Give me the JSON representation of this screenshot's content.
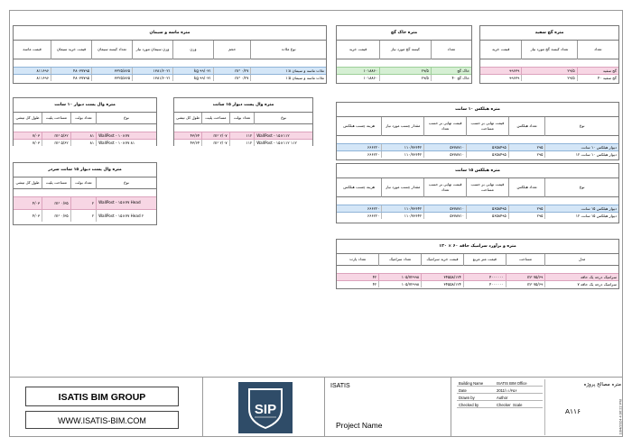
{
  "concrete": {
    "title": "متره ماسه و سیمان",
    "headers": [
      "قیمت ماسه",
      "قیمت خرید سیمان",
      "تعداد کیسه سیمان",
      "وزن سیمان مورد نیاز",
      "وزن",
      "حجم",
      "نوع ملات"
    ],
    "rows": [
      [
        "۸۱۱۶۹۶",
        "۴۸۰۳۷۷۹۵",
        "۳۳۲۵/۸۶۵",
        "۱۳۸۱/۶۰۲۱",
        "kg ۹۹/۰۳۱",
        "۰/۲۷ m³",
        "ملات ماسه و سیمان ۱:۸"
      ],
      [
        "۸۱۱۶۹۶",
        "۴۸۰۳۷۷۹۵",
        "۳۳۲۵/۸۶۵",
        "۱۳۸۱/۶۰۲۱",
        "kg ۹۹/۰۳۱",
        "۰/۲۷ m³",
        "ملات ماسه و سیمان ۱:۵"
      ]
    ]
  },
  "khak_gach": {
    "title": "متره خاک گچ",
    "headers": [
      "قیمت خرید",
      "کیسه گچ مورد نیاز",
      "تعداد"
    ],
    "rows": [
      [
        "۱۰۱۸۸۶۰",
        "۲۹/۵",
        "خاک گچ"
      ],
      [
        "۱۰۱۸۸۶۰",
        "۲۹/۵",
        "خاک گچ ۴۰"
      ]
    ]
  },
  "gach_sefid": {
    "title": "متره گچ سفید",
    "headers": [
      "قیمت خرید",
      "تعداد کیسه گچ مورد نیاز",
      "تعداد"
    ],
    "rows": [
      [
        "۹۹۶۳۹",
        "۲۹/۵",
        "گچ سفید"
      ],
      [
        "۹۹۶۳۹",
        "۲۹/۵",
        "گچ سفید ۴۰"
      ]
    ]
  },
  "wall10": {
    "title": "متره وال پست دیوار ۱۰ سانت",
    "headers": [
      "طول کل تیشی",
      "مساحت پلیت",
      "تعداد بولت",
      "نوع"
    ],
    "rows": [
      [
        "۷/۰۳",
        "۵/۶۲ m²",
        "۸۱",
        "WallPost - ۱۰×۷۷"
      ],
      [
        "۷/۰۳",
        "۵/۶۲ m²",
        "۸۱",
        "WallPost - ۱۰×۷۷ ۸۱"
      ]
    ]
  },
  "wall15": {
    "title": "متره وال پست دیوار ۱۵ سانت",
    "headers": [
      "طول کل تیشی",
      "مساحت پلیت",
      "تعداد بولت",
      "نوع"
    ],
    "rows": [
      [
        "۴۳/۶۴",
        "۲/۰۷ m²",
        "۱۱۲",
        "WallPost - ۱۵×۱۱۲"
      ],
      [
        "۴۳/۶۴",
        "۲/۰۷ m²",
        "۱۱۲",
        "WallPost - ۱۵×۱۱۲ ۱۱۲"
      ]
    ]
  },
  "wall15s": {
    "title": "متره وال پست دیوار ۱۵ سانت سردر",
    "headers": [
      "طول کل تیشی",
      "مساحت پلیت",
      "تعداد بولت",
      "نوع"
    ],
    "rows": [
      [
        "۴/۰۳",
        "۰/۳۵ m²",
        "۲",
        "WallPost - ۱۵×۷۷ Head"
      ],
      [
        "۴/۰۳",
        "۰/۳۵ m²",
        "۲",
        "WallPost - ۱۵×۷۷ Head ۲"
      ]
    ]
  },
  "hebel10": {
    "title": "متره هبلکس ۱۰ سانت",
    "headers": [
      "هزینه چسب هبلکس",
      "مقدار چسب مورد نیاز",
      "قیمت تهایی بر حسب تعداد",
      "قیمت تهایی بر حسب مساحت",
      "تعداد هبلکس",
      "نوع"
    ],
    "rows": [
      [
        "۶۶۶۲۲۰",
        "۱۱۰/۷۳۶۴۲",
        "۵۳۷۸۷۱۰",
        "۵۶۵۸۴۹۵",
        "۲۹۵",
        "دیوار هبلکس ۱۰ سانت"
      ],
      [
        "۶۶۶۲۲۰",
        "۱۱۰/۷۳۶۴۲",
        "۵۳۷۸۷۱۰",
        "۵۶۵۸۴۹۵",
        "۲۹۵",
        "دیوار هبلکس ۱۰ سانت ۱۲"
      ]
    ]
  },
  "hebel15": {
    "title": "متره هبلکس ۱۵ سانت",
    "headers": [
      "هزینه چسب هبلکس",
      "مقدار چسب مورد نیاز",
      "قیمت تهایی بر حسب تعداد",
      "قیمت تهایی بر حسب مساحت",
      "تعداد هبلکس",
      "نوع"
    ],
    "rows": [
      [
        "۶۶۶۲۲۰",
        "۱۱۰/۷۳۶۴۲",
        "۵۳۷۸۷۱۰",
        "۵۶۵۸۴۹۵",
        "۲۹۵",
        "دیوار هبلکس ۱۵ سانت"
      ],
      [
        "۶۶۶۲۲۰",
        "۱۱۰/۷۳۶۴۲",
        "۵۳۷۸۷۱۰",
        "۵۶۵۸۴۹۵",
        "۲۹۵",
        "دیوار هبلکس ۱۵ سانت ۱۲"
      ]
    ]
  },
  "ceramic": {
    "title": "متره و برآورد سرامیک حاقه ۶۰ × ۱۲۰",
    "headers": [
      "تعداد پارت",
      "تعداد سرامیک",
      "قیمت خرید سرامیک",
      "قیمت متر مربع",
      "مساحت",
      "مدل"
    ],
    "rows": [
      [
        "۴۲",
        "۱۰۵/۷۲۹۹۸",
        "۳۴۵۵۸/۱۲۴",
        "۴۰۰۰۰۰۰",
        "۷۵/۶۹ m²",
        "سرامیک درجه یک حاقه"
      ],
      [
        "۴۲",
        "۱۰۵/۷۲۹۹۸",
        "۳۴۵۵۸/۱۲۴",
        "۴۰۰۰۰۰۰",
        "۷۵/۶۹ m²",
        "سرامیک درجه یک حاقه ۷"
      ]
    ]
  },
  "titleblock": {
    "company": "ISATIS BIM GROUP",
    "website": "WWW.ISATIS-BIM.COM",
    "client": "ISATIS",
    "project_name": "Project Name",
    "sheet_name": "متره مصالح پروژه",
    "sheet_number": "A۱۱۶",
    "building_label": "Building Name",
    "building_value": "ISATIS BIM Office",
    "date_label": "Date",
    "date_value": "2011/۱۱/۴۵۶",
    "drawn_label": "Drawn by",
    "drawn_value": "Author",
    "checked_label": "Checked by",
    "checked_value": "Checker",
    "scale_label": "Scale",
    "print_date": "10/4/2024 4:06:22 PM"
  }
}
